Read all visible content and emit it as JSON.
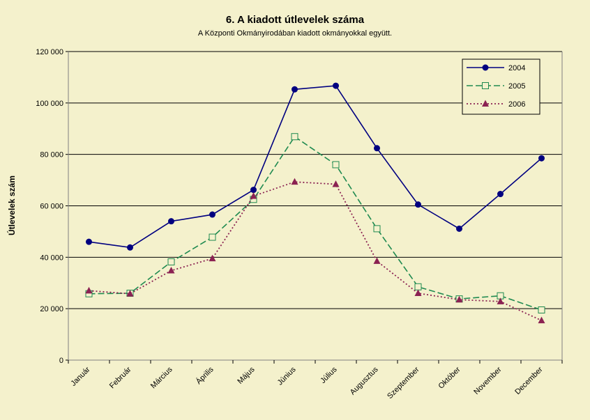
{
  "chart_data": {
    "type": "line",
    "title": "6. A  kiadott útlevelek száma",
    "subtitle": "A Központi Okmányirodában kiadott okmányokkal együtt.",
    "ylabel": "Útlevelek szám",
    "xlabel": "",
    "ylim": [
      0,
      120000
    ],
    "y_ticks": [
      0,
      20000,
      40000,
      60000,
      80000,
      100000,
      120000
    ],
    "y_tick_labels": [
      "0",
      "20 000",
      "40 000",
      "60 000",
      "80 000",
      "100 000",
      "120 000"
    ],
    "grid": true,
    "legend_position": "top-right",
    "categories": [
      "Január",
      "Február",
      "Március",
      "Április",
      "Május",
      "Június",
      "Július",
      "Augusztus",
      "Szeptember",
      "Október",
      "November",
      "December"
    ],
    "series": [
      {
        "name": "2004",
        "color": "#000080",
        "marker": "diamond",
        "line": "solid",
        "values": [
          46000,
          43800,
          54000,
          56600,
          66200,
          105300,
          106700,
          82400,
          60500,
          51100,
          64600,
          78500
        ]
      },
      {
        "name": "2005",
        "color": "#1f8a50",
        "marker": "square-open",
        "line": "dashed",
        "values": [
          25800,
          26000,
          38200,
          47800,
          62500,
          86900,
          76000,
          51100,
          28500,
          23800,
          25000,
          19500
        ]
      },
      {
        "name": "2006",
        "color": "#8b2252",
        "marker": "triangle",
        "line": "dotted",
        "values": [
          27000,
          25800,
          34800,
          39500,
          63800,
          69300,
          68400,
          38500,
          26000,
          23500,
          22800,
          15400
        ]
      }
    ]
  }
}
